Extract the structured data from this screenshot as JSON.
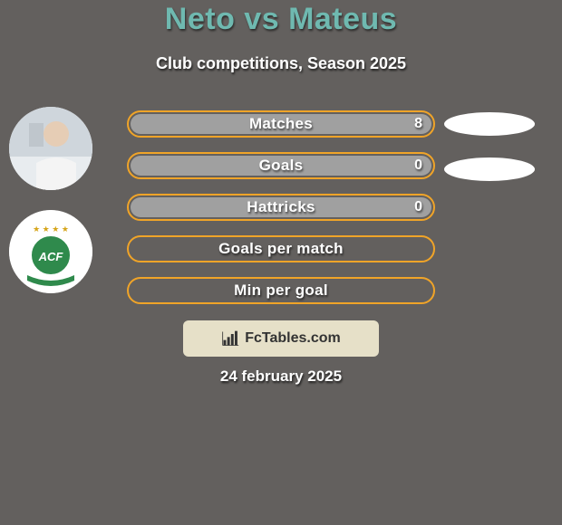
{
  "title": {
    "player1": "Neto",
    "vs": "vs",
    "player2": "Mateus",
    "player1_color": "#6fb9b0",
    "vs_color": "#6fb9b0",
    "player2_color": "#6fb9b0"
  },
  "subtitle": "Club competitions, Season 2025",
  "background_color": "#63605e",
  "bars": {
    "outline_color": "#f0a428",
    "outline_width": 2,
    "fill_color": "#a0a0a0",
    "track_height": 30,
    "track_radius": 18,
    "track_width": 340,
    "rows": [
      {
        "label": "Matches",
        "value": "8",
        "fill_pct": 100
      },
      {
        "label": "Goals",
        "value": "0",
        "fill_pct": 100
      },
      {
        "label": "Hattricks",
        "value": "0",
        "fill_pct": 100
      },
      {
        "label": "Goals per match",
        "value": "",
        "fill_pct": 0
      },
      {
        "label": "Min per goal",
        "value": "",
        "fill_pct": 0
      }
    ]
  },
  "right_ellipses": {
    "count": 2,
    "color": "#ffffff",
    "width": 100,
    "height": 26
  },
  "avatar": {
    "name": "player-photo",
    "bg": "#d9dce0"
  },
  "club_badge": {
    "ring_bg": "#ffffff",
    "emblem_bg": "#2f8a4c",
    "emblem_text": "ACF",
    "emblem_text_color": "#ffffff",
    "stars_color": "#d6a51a",
    "stars": "★ ★ ★ ★",
    "ribbon_color": "#2f8a4c"
  },
  "logo_box": {
    "bg": "#e6e0c8",
    "text": "FcTables.com",
    "text_color": "#333333",
    "icon_color": "#333333"
  },
  "date": "24 february 2025"
}
